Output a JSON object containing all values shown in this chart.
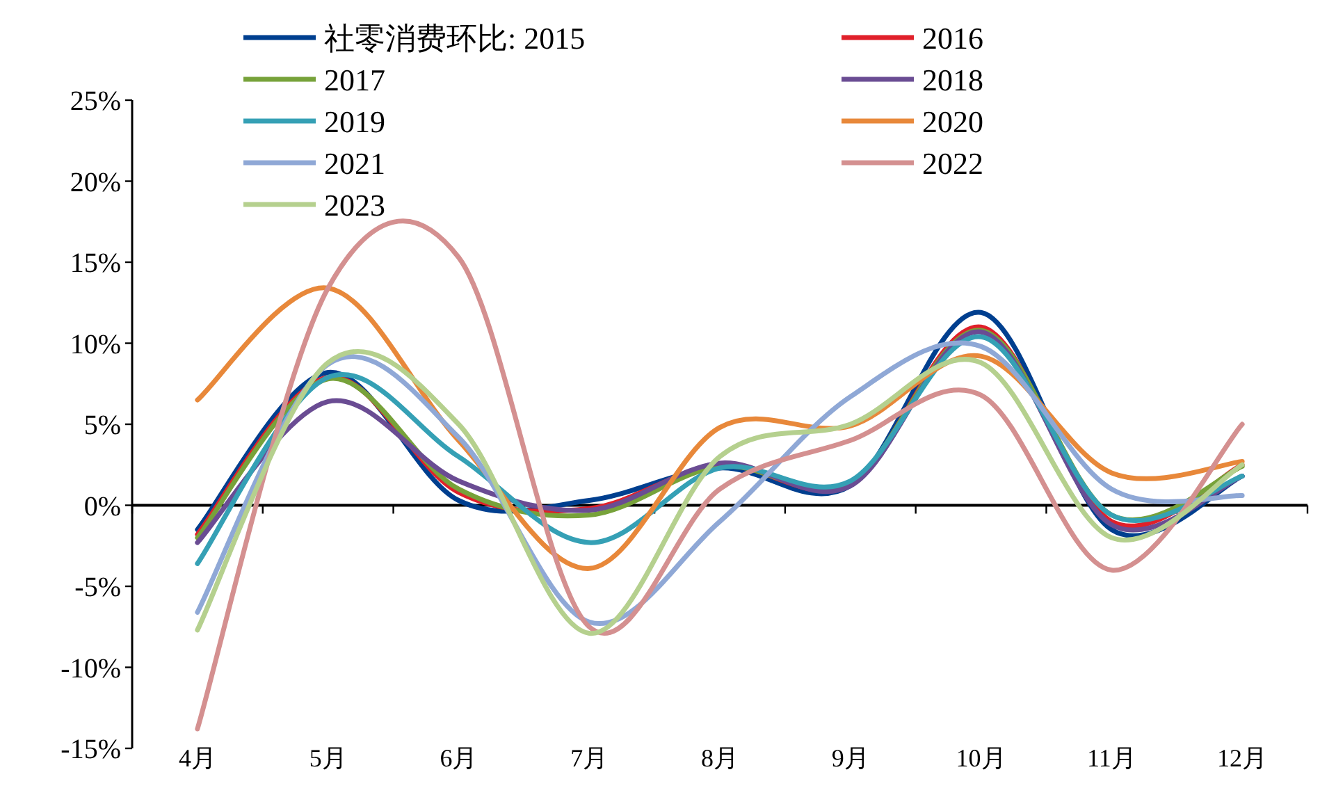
{
  "chart_data": {
    "type": "line",
    "categories": [
      "4月",
      "5月",
      "6月",
      "7月",
      "8月",
      "9月",
      "10月",
      "11月",
      "12月"
    ],
    "ylim": [
      -15,
      25
    ],
    "yticks": [
      {
        "value": -15,
        "label": "-15%"
      },
      {
        "value": -10,
        "label": "-10%"
      },
      {
        "value": -5,
        "label": "-5%"
      },
      {
        "value": 0,
        "label": "0%"
      },
      {
        "value": 5,
        "label": "5%"
      },
      {
        "value": 10,
        "label": "10%"
      },
      {
        "value": 15,
        "label": "15%"
      },
      {
        "value": 20,
        "label": "20%"
      },
      {
        "value": 25,
        "label": "25%"
      }
    ],
    "legend": "top",
    "marker": "none",
    "line_style": "solid",
    "series": [
      {
        "name": "社零消费环比: 2015",
        "color": "#003f8f",
        "values": [
          -1.5,
          8.2,
          0.3,
          0.3,
          2.3,
          1.2,
          11.9,
          -1.5,
          1.8
        ]
      },
      {
        "name": "2016",
        "color": "#e0202a",
        "values": [
          -1.8,
          7.9,
          0.8,
          -0.2,
          2.5,
          1.3,
          11.0,
          -1.0,
          2.5
        ]
      },
      {
        "name": "2017",
        "color": "#77a23a",
        "values": [
          -2.0,
          7.8,
          1.0,
          -0.6,
          2.4,
          1.4,
          10.8,
          -0.6,
          2.4
        ]
      },
      {
        "name": "2018",
        "color": "#6a4c93",
        "values": [
          -2.3,
          6.4,
          1.5,
          -0.3,
          2.6,
          1.2,
          10.7,
          -1.2,
          1.8
        ]
      },
      {
        "name": "2019",
        "color": "#35a0b5",
        "values": [
          -3.6,
          7.9,
          3.0,
          -2.3,
          2.3,
          1.5,
          10.4,
          -0.6,
          1.8
        ]
      },
      {
        "name": "2020",
        "color": "#e8883a",
        "values": [
          6.5,
          13.4,
          4.0,
          -3.9,
          4.8,
          4.9,
          9.2,
          2.0,
          2.7
        ]
      },
      {
        "name": "2021",
        "color": "#8fa8d6",
        "values": [
          -6.6,
          8.7,
          4.2,
          -7.2,
          -1.0,
          6.7,
          9.8,
          1.0,
          0.6
        ]
      },
      {
        "name": "2022",
        "color": "#d49090",
        "values": [
          -13.8,
          13.4,
          15.3,
          -7.5,
          1.0,
          4.0,
          6.8,
          -4.0,
          5.0
        ]
      },
      {
        "name": "2023",
        "color": "#b5d08e",
        "values": [
          -7.7,
          8.8,
          5.0,
          -7.9,
          3.0,
          5.0,
          8.8,
          -2.0,
          2.5
        ]
      }
    ]
  }
}
